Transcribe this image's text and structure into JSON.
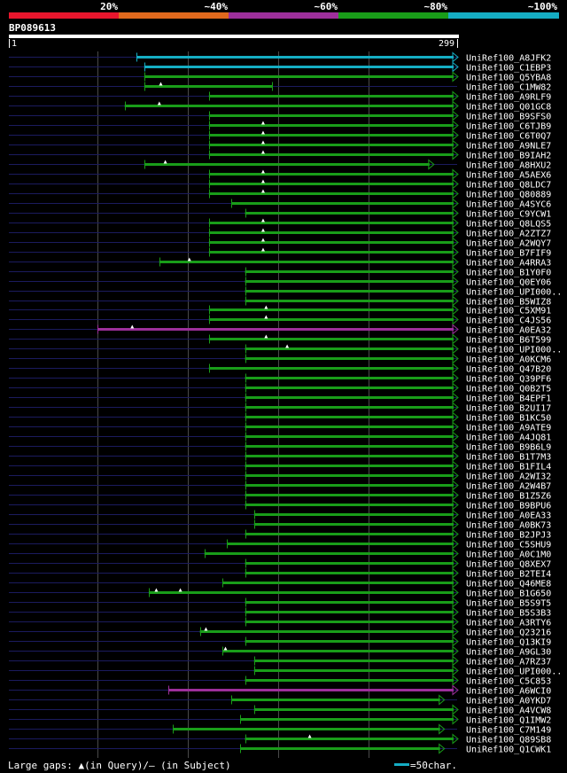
{
  "chart_data": {
    "type": "alignment-overview",
    "query": "BP089613",
    "query_start": "1",
    "query_end": "299",
    "query_length": 299,
    "identity_scale": [
      {
        "label": "20%",
        "color": "#e8162d"
      },
      {
        "label": "~40%",
        "color": "#e0691d"
      },
      {
        "label": "~60%",
        "color": "#9d2f9b"
      },
      {
        "label": "~80%",
        "color": "#199d19"
      },
      {
        "label": "~100%",
        "color": "#15adc3"
      }
    ],
    "gridlines_at": [
      60,
      120,
      180,
      240
    ],
    "hits": [
      {
        "name": "UniRef100_A8JFK2",
        "start": 86,
        "end": 299,
        "identity": "~100%",
        "arrow_end": true,
        "gaps": []
      },
      {
        "name": "UniRef100_C1EBP3",
        "start": 91,
        "end": 299,
        "identity": "~100%",
        "arrow_end": true,
        "gaps": []
      },
      {
        "name": "UniRef100_Q5YBA8",
        "start": 91,
        "end": 299,
        "identity": "~80%",
        "arrow_end": true,
        "gaps": []
      },
      {
        "name": "UniRef100_C1MW82",
        "start": 91,
        "end": 176,
        "identity": "~80%",
        "arrow_end": false,
        "gaps": [
          102
        ]
      },
      {
        "name": "UniRef100_A9RLF9",
        "start": 134,
        "end": 299,
        "identity": "~80%",
        "arrow_end": true,
        "gaps": []
      },
      {
        "name": "UniRef100_Q01GC8",
        "start": 78,
        "end": 299,
        "identity": "~80%",
        "arrow_end": true,
        "gaps": [
          101
        ]
      },
      {
        "name": "UniRef100_B9SFS0",
        "start": 134,
        "end": 299,
        "identity": "~80%",
        "arrow_end": true,
        "gaps": []
      },
      {
        "name": "UniRef100_C6TJB9",
        "start": 134,
        "end": 299,
        "identity": "~80%",
        "arrow_end": true,
        "gaps": [
          170
        ]
      },
      {
        "name": "UniRef100_C6T0Q7",
        "start": 134,
        "end": 299,
        "identity": "~80%",
        "arrow_end": true,
        "gaps": [
          170
        ]
      },
      {
        "name": "UniRef100_A9NLE7",
        "start": 134,
        "end": 299,
        "identity": "~80%",
        "arrow_end": true,
        "gaps": [
          170
        ]
      },
      {
        "name": "UniRef100_B9IAH2",
        "start": 134,
        "end": 299,
        "identity": "~80%",
        "arrow_end": true,
        "gaps": [
          170
        ]
      },
      {
        "name": "UniRef100_A8HXU2",
        "start": 91,
        "end": 283,
        "identity": "~80%",
        "arrow_end": true,
        "gaps": [
          105
        ]
      },
      {
        "name": "UniRef100_A5AEX6",
        "start": 134,
        "end": 299,
        "identity": "~80%",
        "arrow_end": true,
        "gaps": [
          170
        ]
      },
      {
        "name": "UniRef100_Q8LDC7",
        "start": 134,
        "end": 299,
        "identity": "~80%",
        "arrow_end": true,
        "gaps": [
          170
        ]
      },
      {
        "name": "UniRef100_Q80889",
        "start": 134,
        "end": 299,
        "identity": "~80%",
        "arrow_end": true,
        "gaps": [
          170
        ]
      },
      {
        "name": "UniRef100_A4SYC6",
        "start": 149,
        "end": 299,
        "identity": "~80%",
        "arrow_end": true,
        "gaps": []
      },
      {
        "name": "UniRef100_C9YCW1",
        "start": 158,
        "end": 299,
        "identity": "~80%",
        "arrow_end": true,
        "gaps": []
      },
      {
        "name": "UniRef100_Q8LQS5",
        "start": 134,
        "end": 299,
        "identity": "~80%",
        "arrow_end": true,
        "gaps": [
          170
        ]
      },
      {
        "name": "UniRef100_A2ZTZ7",
        "start": 134,
        "end": 299,
        "identity": "~80%",
        "arrow_end": true,
        "gaps": [
          170
        ]
      },
      {
        "name": "UniRef100_A2WQY7",
        "start": 134,
        "end": 299,
        "identity": "~80%",
        "arrow_end": true,
        "gaps": [
          170
        ]
      },
      {
        "name": "UniRef100_B7FIF9",
        "start": 134,
        "end": 299,
        "identity": "~80%",
        "arrow_end": true,
        "gaps": [
          170
        ]
      },
      {
        "name": "UniRef100_A4RRA3",
        "start": 101,
        "end": 299,
        "identity": "~80%",
        "arrow_end": true,
        "gaps": [
          121
        ]
      },
      {
        "name": "UniRef100_B1Y0F0",
        "start": 158,
        "end": 299,
        "identity": "~80%",
        "arrow_end": true,
        "gaps": []
      },
      {
        "name": "UniRef100_Q0EY06",
        "start": 158,
        "end": 299,
        "identity": "~80%",
        "arrow_end": true,
        "gaps": []
      },
      {
        "name": "UniRef100_UPI000..",
        "start": 158,
        "end": 299,
        "identity": "~80%",
        "arrow_end": true,
        "gaps": []
      },
      {
        "name": "UniRef100_B5WIZ8",
        "start": 158,
        "end": 299,
        "identity": "~80%",
        "arrow_end": true,
        "gaps": []
      },
      {
        "name": "UniRef100_C5XM91",
        "start": 134,
        "end": 299,
        "identity": "~80%",
        "arrow_end": true,
        "gaps": [
          172
        ]
      },
      {
        "name": "UniRef100_C4JS56",
        "start": 134,
        "end": 299,
        "identity": "~80%",
        "arrow_end": true,
        "gaps": [
          172
        ]
      },
      {
        "name": "UniRef100_A0EA32",
        "start": 60,
        "end": 299,
        "identity": "~60%",
        "arrow_end": true,
        "gaps": [
          83
        ]
      },
      {
        "name": "UniRef100_B6T599",
        "start": 134,
        "end": 299,
        "identity": "~80%",
        "arrow_end": true,
        "gaps": [
          172
        ]
      },
      {
        "name": "UniRef100_UPI000..",
        "start": 158,
        "end": 299,
        "identity": "~80%",
        "arrow_end": true,
        "gaps": [
          186
        ]
      },
      {
        "name": "UniRef100_A0KCM6",
        "start": 158,
        "end": 299,
        "identity": "~80%",
        "arrow_end": true,
        "gaps": []
      },
      {
        "name": "UniRef100_Q47B20",
        "start": 134,
        "end": 299,
        "identity": "~80%",
        "arrow_end": true,
        "gaps": []
      },
      {
        "name": "UniRef100_Q39PF6",
        "start": 158,
        "end": 299,
        "identity": "~80%",
        "arrow_end": true,
        "gaps": []
      },
      {
        "name": "UniRef100_Q0B2T5",
        "start": 158,
        "end": 299,
        "identity": "~80%",
        "arrow_end": true,
        "gaps": []
      },
      {
        "name": "UniRef100_B4EPF1",
        "start": 158,
        "end": 299,
        "identity": "~80%",
        "arrow_end": true,
        "gaps": []
      },
      {
        "name": "UniRef100_B2UI17",
        "start": 158,
        "end": 299,
        "identity": "~80%",
        "arrow_end": true,
        "gaps": []
      },
      {
        "name": "UniRef100_B1KC50",
        "start": 158,
        "end": 299,
        "identity": "~80%",
        "arrow_end": true,
        "gaps": []
      },
      {
        "name": "UniRef100_A9ATE9",
        "start": 158,
        "end": 299,
        "identity": "~80%",
        "arrow_end": true,
        "gaps": []
      },
      {
        "name": "UniRef100_A4JQ81",
        "start": 158,
        "end": 299,
        "identity": "~80%",
        "arrow_end": true,
        "gaps": []
      },
      {
        "name": "UniRef100_B9B6L9",
        "start": 158,
        "end": 299,
        "identity": "~80%",
        "arrow_end": true,
        "gaps": []
      },
      {
        "name": "UniRef100_B1T7M3",
        "start": 158,
        "end": 299,
        "identity": "~80%",
        "arrow_end": true,
        "gaps": []
      },
      {
        "name": "UniRef100_B1FIL4",
        "start": 158,
        "end": 299,
        "identity": "~80%",
        "arrow_end": true,
        "gaps": []
      },
      {
        "name": "UniRef100_A2WI32",
        "start": 158,
        "end": 299,
        "identity": "~80%",
        "arrow_end": true,
        "gaps": []
      },
      {
        "name": "UniRef100_A2W4B7",
        "start": 158,
        "end": 299,
        "identity": "~80%",
        "arrow_end": true,
        "gaps": []
      },
      {
        "name": "UniRef100_B1Z5Z6",
        "start": 158,
        "end": 299,
        "identity": "~80%",
        "arrow_end": true,
        "gaps": []
      },
      {
        "name": "UniRef100_B9BPU6",
        "start": 158,
        "end": 299,
        "identity": "~80%",
        "arrow_end": true,
        "gaps": []
      },
      {
        "name": "UniRef100_A0EA33",
        "start": 164,
        "end": 299,
        "identity": "~80%",
        "arrow_end": true,
        "gaps": []
      },
      {
        "name": "UniRef100_A0BK73",
        "start": 164,
        "end": 299,
        "identity": "~80%",
        "arrow_end": true,
        "gaps": []
      },
      {
        "name": "UniRef100_B2JPJ3",
        "start": 158,
        "end": 299,
        "identity": "~80%",
        "arrow_end": true,
        "gaps": []
      },
      {
        "name": "UniRef100_C5SHU9",
        "start": 146,
        "end": 299,
        "identity": "~80%",
        "arrow_end": true,
        "gaps": []
      },
      {
        "name": "UniRef100_A0C1M0",
        "start": 131,
        "end": 299,
        "identity": "~80%",
        "arrow_end": true,
        "gaps": []
      },
      {
        "name": "UniRef100_Q8XEX7",
        "start": 158,
        "end": 299,
        "identity": "~80%",
        "arrow_end": true,
        "gaps": []
      },
      {
        "name": "UniRef100_B2TEI4",
        "start": 158,
        "end": 299,
        "identity": "~80%",
        "arrow_end": true,
        "gaps": []
      },
      {
        "name": "UniRef100_Q46ME8",
        "start": 143,
        "end": 299,
        "identity": "~80%",
        "arrow_end": true,
        "gaps": []
      },
      {
        "name": "UniRef100_B1G650",
        "start": 94,
        "end": 299,
        "identity": "~80%",
        "arrow_end": true,
        "gaps": [
          99,
          115
        ]
      },
      {
        "name": "UniRef100_B5S9T5",
        "start": 158,
        "end": 299,
        "identity": "~80%",
        "arrow_end": true,
        "gaps": []
      },
      {
        "name": "UniRef100_B5S3B3",
        "start": 158,
        "end": 299,
        "identity": "~80%",
        "arrow_end": true,
        "gaps": []
      },
      {
        "name": "UniRef100_A3RTY6",
        "start": 158,
        "end": 299,
        "identity": "~80%",
        "arrow_end": true,
        "gaps": []
      },
      {
        "name": "UniRef100_Q23216",
        "start": 128,
        "end": 299,
        "identity": "~80%",
        "arrow_end": true,
        "gaps": [
          132
        ]
      },
      {
        "name": "UniRef100_Q13KI9",
        "start": 158,
        "end": 299,
        "identity": "~80%",
        "arrow_end": true,
        "gaps": []
      },
      {
        "name": "UniRef100_A9GL30",
        "start": 143,
        "end": 299,
        "identity": "~80%",
        "arrow_end": true,
        "gaps": [
          145
        ]
      },
      {
        "name": "UniRef100_A7RZ37",
        "start": 164,
        "end": 299,
        "identity": "~80%",
        "arrow_end": true,
        "gaps": []
      },
      {
        "name": "UniRef100_UPI000..",
        "start": 164,
        "end": 299,
        "identity": "~80%",
        "arrow_end": true,
        "gaps": []
      },
      {
        "name": "UniRef100_C5C853",
        "start": 158,
        "end": 299,
        "identity": "~80%",
        "arrow_end": true,
        "gaps": []
      },
      {
        "name": "UniRef100_A6WCI0",
        "start": 107,
        "end": 299,
        "identity": "~60%",
        "arrow_end": true,
        "gaps": []
      },
      {
        "name": "UniRef100_A0YKD7",
        "start": 149,
        "end": 290,
        "identity": "~80%",
        "arrow_end": true,
        "gaps": []
      },
      {
        "name": "UniRef100_A4VCW8",
        "start": 164,
        "end": 299,
        "identity": "~80%",
        "arrow_end": true,
        "gaps": []
      },
      {
        "name": "UniRef100_Q1IMW2",
        "start": 155,
        "end": 299,
        "identity": "~80%",
        "arrow_end": true,
        "gaps": []
      },
      {
        "name": "UniRef100_C7M149",
        "start": 110,
        "end": 290,
        "identity": "~80%",
        "arrow_end": true,
        "gaps": []
      },
      {
        "name": "UniRef100_Q89SB8",
        "start": 158,
        "end": 299,
        "identity": "~80%",
        "arrow_end": true,
        "gaps": [
          201
        ]
      },
      {
        "name": "UniRef100_Q1CWK1",
        "start": 155,
        "end": 290,
        "identity": "~80%",
        "arrow_end": true,
        "gaps": []
      }
    ]
  },
  "footer": {
    "legend_text": "Large gaps: ▲(in Query)/— (in Subject)",
    "scale_text": "=50char."
  }
}
